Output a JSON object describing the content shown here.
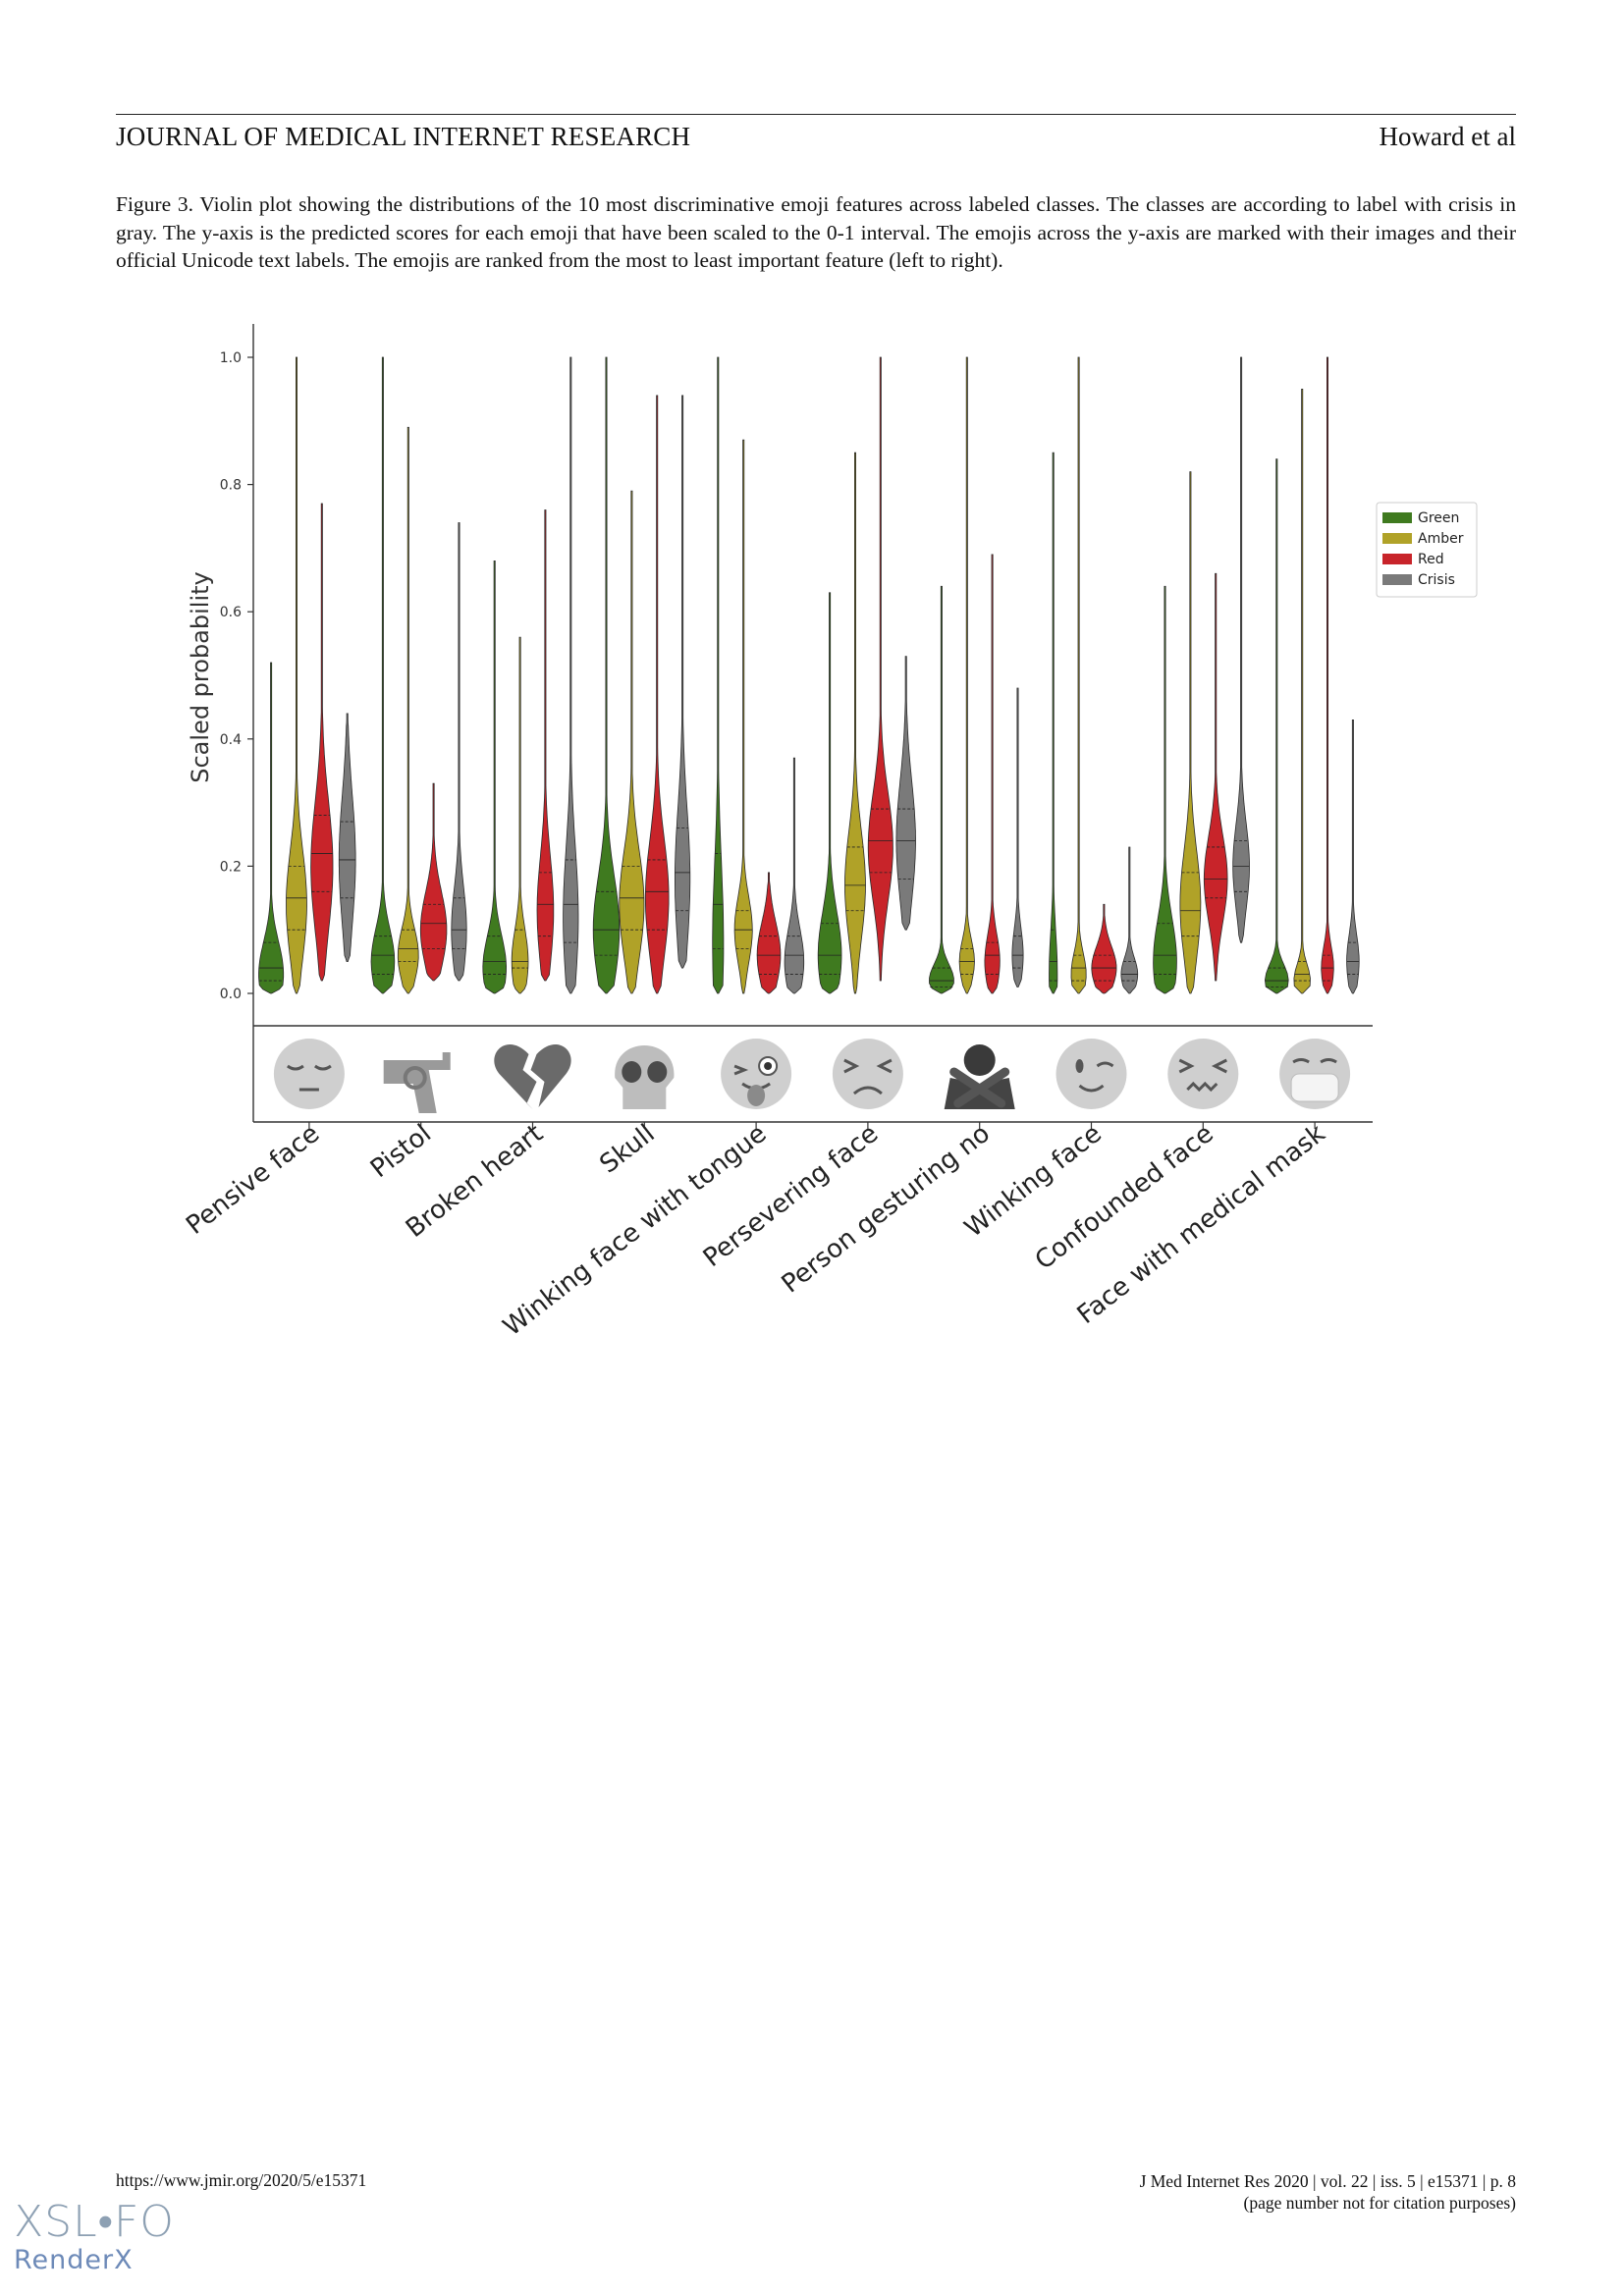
{
  "header": {
    "journal": "JOURNAL OF MEDICAL INTERNET RESEARCH",
    "authors": "Howard et al"
  },
  "figure": {
    "caption": "Figure 3.  Violin plot showing the distributions of the 10 most discriminative emoji features across labeled classes. The classes are according to label with crisis in gray. The y-axis is the predicted scores for each emoji that have been scaled to the 0-1 interval. The emojis across the y-axis are marked with their images and their official Unicode text labels. The emojis are ranked from the most to least important feature (left to right)."
  },
  "chart_data": {
    "type": "violin",
    "ylabel": "Scaled probability",
    "ylim": [
      0,
      1
    ],
    "yticks": [
      "0.0",
      "0.2",
      "0.4",
      "0.6",
      "0.8",
      "1.0"
    ],
    "categories": [
      "Pensive face",
      "Pistol",
      "Broken heart",
      "Skull",
      "Winking face with tongue",
      "Persevering face",
      "Person gesturing no",
      "Winking face",
      "Confounded face",
      "Face with medical mask"
    ],
    "icons": [
      "pensive-face-icon",
      "pistol-icon",
      "broken-heart-icon",
      "skull-icon",
      "winking-face-with-tongue-icon",
      "persevering-face-icon",
      "person-gesturing-no-icon",
      "winking-face-icon",
      "confounded-face-icon",
      "face-with-medical-mask-icon"
    ],
    "legend": {
      "placement": "right",
      "entries": [
        "Green",
        "Amber",
        "Red",
        "Crisis"
      ]
    },
    "series": [
      {
        "name": "Green",
        "color": "#3f7a1f",
        "stats": [
          {
            "min": 0.0,
            "q1": 0.02,
            "median": 0.04,
            "q3": 0.08,
            "max": 0.52,
            "peak": 0.03,
            "width": 0.9
          },
          {
            "min": 0.0,
            "q1": 0.03,
            "median": 0.06,
            "q3": 0.09,
            "max": 1.0,
            "peak": 0.05,
            "width": 0.85
          },
          {
            "min": 0.0,
            "q1": 0.03,
            "median": 0.05,
            "q3": 0.09,
            "max": 0.68,
            "peak": 0.04,
            "width": 0.85
          },
          {
            "min": 0.0,
            "q1": 0.06,
            "median": 0.1,
            "q3": 0.16,
            "max": 1.0,
            "peak": 0.1,
            "width": 0.95
          },
          {
            "min": 0.0,
            "q1": 0.07,
            "median": 0.14,
            "q3": 0.22,
            "max": 1.0,
            "peak": 0.08,
            "width": 0.4
          },
          {
            "min": 0.0,
            "q1": 0.03,
            "median": 0.06,
            "q3": 0.11,
            "max": 0.63,
            "peak": 0.06,
            "width": 0.85
          },
          {
            "min": 0.0,
            "q1": 0.01,
            "median": 0.02,
            "q3": 0.04,
            "max": 0.64,
            "peak": 0.02,
            "width": 0.9
          },
          {
            "min": 0.0,
            "q1": 0.02,
            "median": 0.05,
            "q3": 0.1,
            "max": 0.85,
            "peak": 0.03,
            "width": 0.3
          },
          {
            "min": 0.0,
            "q1": 0.03,
            "median": 0.06,
            "q3": 0.11,
            "max": 0.64,
            "peak": 0.05,
            "width": 0.85
          },
          {
            "min": 0.0,
            "q1": 0.01,
            "median": 0.02,
            "q3": 0.04,
            "max": 0.84,
            "peak": 0.02,
            "width": 0.85
          }
        ]
      },
      {
        "name": "Amber",
        "color": "#b0a228",
        "stats": [
          {
            "min": 0.0,
            "q1": 0.1,
            "median": 0.15,
            "q3": 0.2,
            "max": 1.0,
            "peak": 0.14,
            "width": 0.75
          },
          {
            "min": 0.0,
            "q1": 0.05,
            "median": 0.07,
            "q3": 0.1,
            "max": 0.89,
            "peak": 0.06,
            "width": 0.75
          },
          {
            "min": 0.0,
            "q1": 0.04,
            "median": 0.05,
            "q3": 0.1,
            "max": 0.56,
            "peak": 0.05,
            "width": 0.6
          },
          {
            "min": 0.0,
            "q1": 0.1,
            "median": 0.15,
            "q3": 0.2,
            "max": 0.79,
            "peak": 0.14,
            "width": 0.9
          },
          {
            "min": 0.0,
            "q1": 0.07,
            "median": 0.1,
            "q3": 0.13,
            "max": 0.87,
            "peak": 0.1,
            "width": 0.65
          },
          {
            "min": 0.0,
            "q1": 0.13,
            "median": 0.17,
            "q3": 0.23,
            "max": 0.85,
            "peak": 0.17,
            "width": 0.75
          },
          {
            "min": 0.0,
            "q1": 0.03,
            "median": 0.05,
            "q3": 0.07,
            "max": 1.0,
            "peak": 0.05,
            "width": 0.55
          },
          {
            "min": 0.0,
            "q1": 0.02,
            "median": 0.04,
            "q3": 0.06,
            "max": 1.0,
            "peak": 0.03,
            "width": 0.55
          },
          {
            "min": 0.0,
            "q1": 0.09,
            "median": 0.13,
            "q3": 0.19,
            "max": 0.82,
            "peak": 0.14,
            "width": 0.75
          },
          {
            "min": 0.0,
            "q1": 0.02,
            "median": 0.03,
            "q3": 0.05,
            "max": 0.95,
            "peak": 0.02,
            "width": 0.6
          }
        ]
      },
      {
        "name": "Red",
        "color": "#c8242a",
        "stats": [
          {
            "min": 0.02,
            "q1": 0.16,
            "median": 0.22,
            "q3": 0.28,
            "max": 0.77,
            "peak": 0.2,
            "width": 0.8
          },
          {
            "min": 0.02,
            "q1": 0.07,
            "median": 0.11,
            "q3": 0.14,
            "max": 0.33,
            "peak": 0.1,
            "width": 0.95
          },
          {
            "min": 0.02,
            "q1": 0.09,
            "median": 0.14,
            "q3": 0.19,
            "max": 0.76,
            "peak": 0.13,
            "width": 0.6
          },
          {
            "min": 0.0,
            "q1": 0.1,
            "median": 0.16,
            "q3": 0.21,
            "max": 0.94,
            "peak": 0.15,
            "width": 0.85
          },
          {
            "min": 0.0,
            "q1": 0.03,
            "median": 0.06,
            "q3": 0.09,
            "max": 0.19,
            "peak": 0.06,
            "width": 0.85
          },
          {
            "min": 0.02,
            "q1": 0.19,
            "median": 0.24,
            "q3": 0.29,
            "max": 1.0,
            "peak": 0.23,
            "width": 0.9
          },
          {
            "min": 0.0,
            "q1": 0.03,
            "median": 0.06,
            "q3": 0.08,
            "max": 0.69,
            "peak": 0.05,
            "width": 0.55
          },
          {
            "min": 0.0,
            "q1": 0.02,
            "median": 0.04,
            "q3": 0.06,
            "max": 0.14,
            "peak": 0.04,
            "width": 0.9
          },
          {
            "min": 0.02,
            "q1": 0.15,
            "median": 0.18,
            "q3": 0.23,
            "max": 0.66,
            "peak": 0.18,
            "width": 0.85
          },
          {
            "min": 0.0,
            "q1": 0.02,
            "median": 0.04,
            "q3": 0.06,
            "max": 1.0,
            "peak": 0.04,
            "width": 0.45
          }
        ]
      },
      {
        "name": "Crisis",
        "color": "#7a7a7a",
        "stats": [
          {
            "min": 0.05,
            "q1": 0.15,
            "median": 0.21,
            "q3": 0.27,
            "max": 0.44,
            "peak": 0.21,
            "width": 0.6
          },
          {
            "min": 0.02,
            "q1": 0.07,
            "median": 0.1,
            "q3": 0.15,
            "max": 0.74,
            "peak": 0.1,
            "width": 0.55
          },
          {
            "min": 0.0,
            "q1": 0.08,
            "median": 0.14,
            "q3": 0.21,
            "max": 1.0,
            "peak": 0.12,
            "width": 0.55
          },
          {
            "min": 0.04,
            "q1": 0.13,
            "median": 0.19,
            "q3": 0.26,
            "max": 0.94,
            "peak": 0.18,
            "width": 0.55
          },
          {
            "min": 0.0,
            "q1": 0.03,
            "median": 0.06,
            "q3": 0.09,
            "max": 0.37,
            "peak": 0.05,
            "width": 0.7
          },
          {
            "min": 0.1,
            "q1": 0.18,
            "median": 0.24,
            "q3": 0.29,
            "max": 0.53,
            "peak": 0.24,
            "width": 0.7
          },
          {
            "min": 0.01,
            "q1": 0.04,
            "median": 0.06,
            "q3": 0.09,
            "max": 0.48,
            "peak": 0.06,
            "width": 0.4
          },
          {
            "min": 0.0,
            "q1": 0.02,
            "median": 0.03,
            "q3": 0.05,
            "max": 0.23,
            "peak": 0.03,
            "width": 0.6
          },
          {
            "min": 0.08,
            "q1": 0.16,
            "median": 0.2,
            "q3": 0.24,
            "max": 1.0,
            "peak": 0.2,
            "width": 0.6
          },
          {
            "min": 0.0,
            "q1": 0.03,
            "median": 0.05,
            "q3": 0.08,
            "max": 0.43,
            "peak": 0.05,
            "width": 0.45
          }
        ]
      }
    ]
  },
  "footer": {
    "url": "https://www.jmir.org/2020/5/e15371",
    "citation": "J Med Internet Res 2020 | vol. 22 | iss. 5 | e15371 | p. 8",
    "citation_note": "(page number not for citation purposes)"
  },
  "branding": {
    "xslfo": "XSL•FO",
    "renderx": "RenderX"
  }
}
